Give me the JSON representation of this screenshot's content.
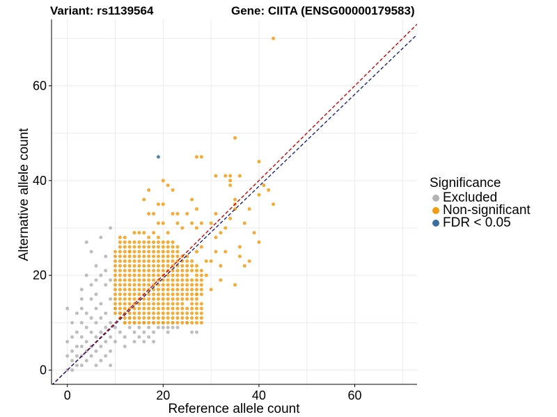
{
  "header": {
    "variant": "Variant: rs1139564",
    "gene": "Gene: CIITA (ENSG00000179583)"
  },
  "legend": {
    "title": "Significance",
    "items": [
      {
        "label": "Excluded",
        "color": "#b3b3b3"
      },
      {
        "label": "Non-significant",
        "color": "#f39c12"
      },
      {
        "label": "FDR < 0.05",
        "color": "#3b6e9e"
      }
    ]
  },
  "colors": {
    "excluded": "#b3b3b3",
    "nonsig": "#f39c12",
    "fdr": "#3b6e9e",
    "diag": "#cc0000",
    "fit": "#1a237e",
    "grid": "#ebebeb"
  },
  "chart_data": {
    "type": "scatter",
    "xlabel": "Reference allele count",
    "ylabel": "Alternative allele count",
    "xlim": [
      -3.3,
      73
    ],
    "ylim": [
      -3,
      74
    ],
    "xticks": [
      0,
      20,
      40,
      60
    ],
    "yticks": [
      0,
      20,
      40,
      60
    ],
    "reference_lines": [
      {
        "name": "y = x",
        "slope": 1.0,
        "intercept": 0,
        "color": "#cc0000",
        "style": "dashed"
      },
      {
        "name": "fit",
        "slope": 0.97,
        "intercept": 0,
        "color": "#1a237e",
        "style": "dashed"
      }
    ],
    "series": [
      {
        "name": "Excluded",
        "points": [
          [
            0,
            13
          ],
          [
            0,
            6
          ],
          [
            0,
            3
          ],
          [
            1,
            7
          ],
          [
            1,
            4
          ],
          [
            1,
            2
          ],
          [
            2,
            5
          ],
          [
            2,
            3
          ],
          [
            2,
            8
          ],
          [
            3,
            17
          ],
          [
            3,
            13
          ],
          [
            3,
            10
          ],
          [
            3,
            7
          ],
          [
            3,
            5
          ],
          [
            3,
            3
          ],
          [
            4,
            27
          ],
          [
            4,
            12
          ],
          [
            4,
            9
          ],
          [
            4,
            6
          ],
          [
            4,
            4
          ],
          [
            4,
            2
          ],
          [
            5,
            25
          ],
          [
            5,
            18
          ],
          [
            5,
            15
          ],
          [
            5,
            11
          ],
          [
            5,
            8
          ],
          [
            5,
            5
          ],
          [
            5,
            3
          ],
          [
            6,
            22
          ],
          [
            6,
            16
          ],
          [
            6,
            13
          ],
          [
            6,
            10
          ],
          [
            6,
            7
          ],
          [
            6,
            4
          ],
          [
            7,
            28
          ],
          [
            7,
            20
          ],
          [
            7,
            14
          ],
          [
            7,
            11
          ],
          [
            7,
            8
          ],
          [
            7,
            5
          ],
          [
            7,
            2
          ],
          [
            8,
            24
          ],
          [
            8,
            18
          ],
          [
            8,
            12
          ],
          [
            8,
            9
          ],
          [
            8,
            6
          ],
          [
            8,
            3
          ],
          [
            9,
            30
          ],
          [
            9,
            19
          ],
          [
            9,
            15
          ],
          [
            9,
            10
          ],
          [
            9,
            7
          ],
          [
            9,
            4
          ],
          [
            9,
            1
          ],
          [
            10,
            13
          ],
          [
            10,
            9
          ],
          [
            10,
            6
          ],
          [
            11,
            12
          ],
          [
            11,
            8
          ],
          [
            12,
            10
          ],
          [
            12,
            7
          ],
          [
            13,
            11
          ],
          [
            13,
            9
          ],
          [
            14,
            10
          ],
          [
            14,
            8
          ],
          [
            15,
            9
          ],
          [
            15,
            7
          ],
          [
            16,
            10
          ],
          [
            16,
            8
          ],
          [
            17,
            9
          ],
          [
            17,
            7
          ],
          [
            18,
            10
          ],
          [
            18,
            8
          ],
          [
            19,
            9
          ],
          [
            20,
            10
          ],
          [
            20,
            9
          ],
          [
            21,
            9
          ],
          [
            21,
            8
          ],
          [
            22,
            10
          ],
          [
            22,
            9
          ],
          [
            23,
            9
          ],
          [
            25,
            10
          ],
          [
            26,
            8
          ],
          [
            27,
            8
          ],
          [
            16,
            6
          ],
          [
            18,
            6
          ],
          [
            14,
            6
          ],
          [
            12,
            5
          ],
          [
            1,
            10
          ],
          [
            2,
            12
          ],
          [
            3,
            15
          ],
          [
            4,
            20
          ],
          [
            6,
            19
          ],
          [
            8,
            21
          ],
          [
            2,
            1
          ],
          [
            3,
            1
          ],
          [
            6,
            1
          ],
          [
            0,
            0
          ],
          [
            1,
            0
          ]
        ]
      },
      {
        "name": "Non-significant",
        "points": [
          [
            43,
            70
          ],
          [
            35,
            49
          ],
          [
            27,
            45
          ],
          [
            28,
            45
          ],
          [
            31,
            41
          ],
          [
            33,
            41
          ],
          [
            34,
            41
          ],
          [
            34,
            40
          ],
          [
            36,
            41
          ],
          [
            40,
            44
          ],
          [
            40,
            37
          ],
          [
            41,
            39
          ],
          [
            42,
            38
          ],
          [
            43,
            35
          ],
          [
            34,
            39
          ],
          [
            35,
            36
          ],
          [
            35,
            35
          ],
          [
            35,
            34
          ],
          [
            34,
            32
          ],
          [
            31,
            33
          ],
          [
            33,
            30
          ],
          [
            37,
            31
          ],
          [
            39,
            29
          ],
          [
            38,
            34
          ],
          [
            40,
            27
          ],
          [
            36,
            26
          ],
          [
            37,
            22
          ],
          [
            36,
            24
          ],
          [
            35,
            18
          ],
          [
            38,
            23
          ],
          [
            26,
            36
          ],
          [
            27,
            34
          ],
          [
            27,
            30
          ],
          [
            28,
            31
          ],
          [
            30,
            31
          ],
          [
            31,
            28
          ],
          [
            32,
            29
          ],
          [
            33,
            25
          ],
          [
            32,
            22
          ],
          [
            32,
            19
          ],
          [
            30,
            23
          ],
          [
            31,
            25
          ],
          [
            22,
            38
          ],
          [
            20,
            40
          ],
          [
            19,
            35
          ],
          [
            20,
            35
          ],
          [
            23,
            33
          ],
          [
            24,
            30
          ],
          [
            21,
            39
          ],
          [
            17,
            38
          ],
          [
            16,
            36
          ],
          [
            17,
            33
          ],
          [
            18,
            29
          ],
          [
            21,
            29
          ],
          [
            22,
            33
          ],
          [
            19,
            31
          ],
          [
            20,
            31
          ],
          [
            18,
            33
          ],
          [
            13,
            27
          ],
          [
            15,
            29
          ],
          [
            14,
            29
          ],
          [
            16,
            29
          ],
          [
            17,
            28
          ],
          [
            19,
            28
          ],
          [
            11,
            28
          ],
          [
            12,
            28
          ],
          [
            13,
            25
          ],
          [
            25,
            33
          ],
          [
            26,
            31
          ],
          [
            23,
            31
          ],
          [
            29,
            23
          ],
          [
            29,
            20
          ],
          [
            28,
            26
          ],
          [
            27,
            25
          ],
          [
            27,
            16
          ],
          [
            30,
            17
          ]
        ],
        "dense_block": {
          "x": [
            10,
            28
          ],
          "y": [
            10,
            27
          ]
        }
      },
      {
        "name": "FDR < 0.05",
        "points": [
          [
            19,
            45
          ]
        ]
      }
    ]
  }
}
